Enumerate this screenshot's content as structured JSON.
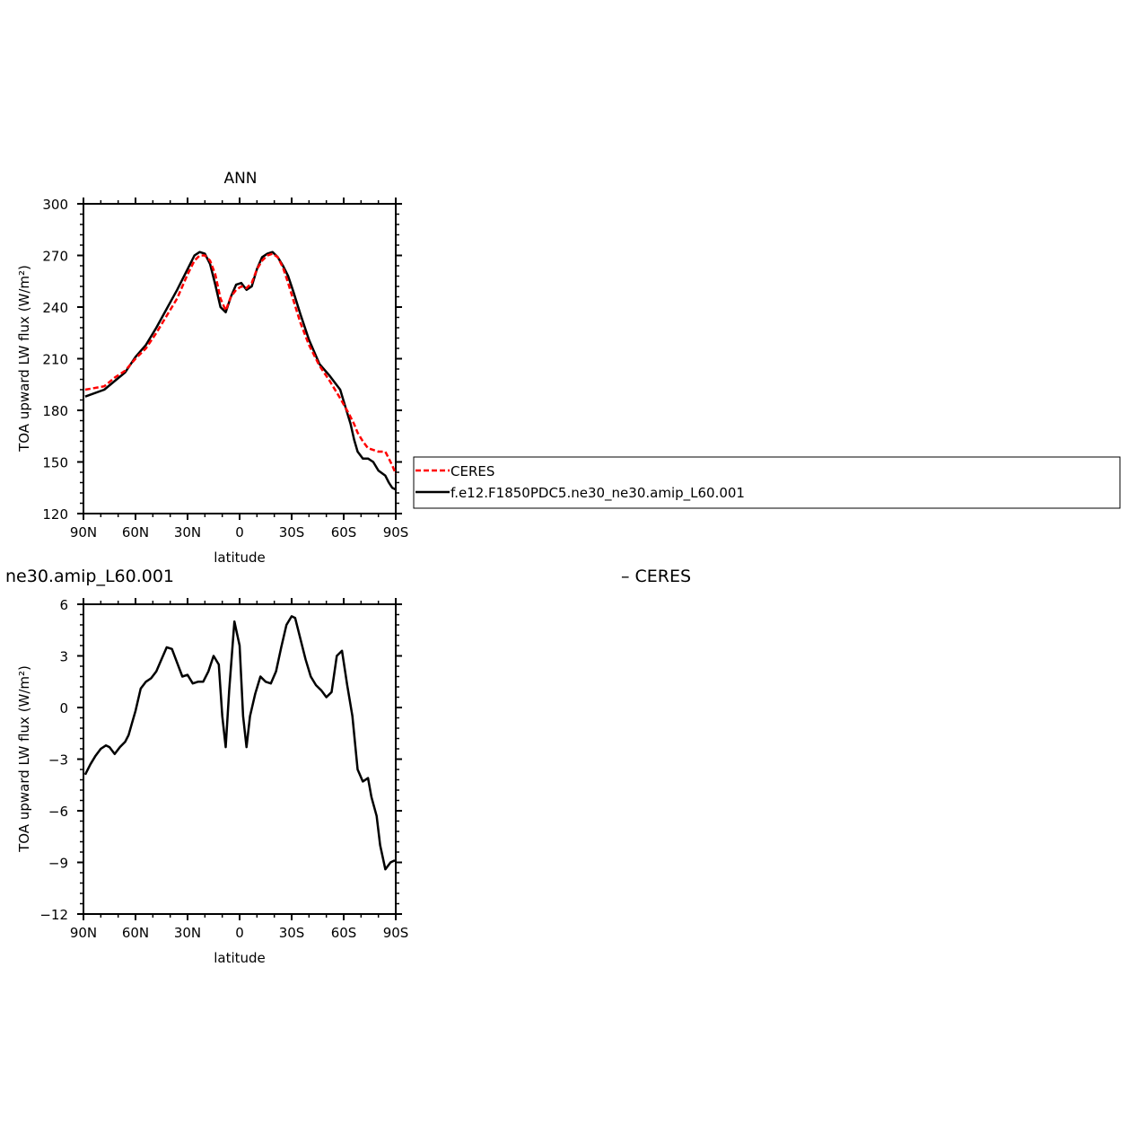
{
  "chart_data": [
    {
      "type": "line",
      "title": "ANN",
      "xlabel": "latitude",
      "ylabel": "TOA upward LW flux (W/m²)",
      "xlim": [
        90,
        -90
      ],
      "ylim": [
        120,
        300
      ],
      "xticks": [
        90,
        60,
        30,
        0,
        -30,
        -60,
        -90
      ],
      "xtick_labels": [
        "90N",
        "60N",
        "30N",
        "0",
        "30S",
        "60S",
        "90S"
      ],
      "yticks": [
        120,
        150,
        180,
        210,
        240,
        270,
        300
      ],
      "ytick_labels": [
        "120",
        "150",
        "180",
        "210",
        "240",
        "270",
        "300"
      ],
      "legend": "right, outside plot area, boxed",
      "series": [
        {
          "name": "CERES",
          "color": "#ff0000",
          "style": "dashed",
          "x": [
            89,
            78,
            72,
            66,
            60,
            54,
            48,
            42,
            36,
            30,
            26,
            23,
            20,
            17,
            14,
            11,
            8,
            5,
            2,
            -1,
            -4,
            -7,
            -10,
            -13,
            -16,
            -19,
            -22,
            -25,
            -28,
            -31,
            -35,
            -40,
            -46,
            -52,
            -58,
            -63,
            -66,
            -68,
            -71,
            -74,
            -77,
            -80,
            -84,
            -86,
            -88,
            -90
          ],
          "y": [
            192,
            194,
            199,
            203,
            210,
            216,
            225,
            235,
            245,
            259,
            267,
            270,
            270,
            267,
            259,
            245,
            238,
            246,
            250,
            252,
            251,
            254,
            262,
            267,
            270,
            271,
            269,
            263,
            254,
            244,
            231,
            218,
            206,
            197,
            187,
            178,
            172,
            167,
            162,
            158,
            157,
            156,
            156,
            152,
            148,
            143
          ]
        },
        {
          "name": "f.e12.F1850PDC5.ne30_ne30.amip_L60.001",
          "color": "#000000",
          "style": "solid",
          "x": [
            89,
            78,
            72,
            66,
            60,
            54,
            48,
            42,
            36,
            30,
            26,
            23,
            20,
            17,
            14,
            11,
            8,
            5,
            2,
            -1,
            -4,
            -7,
            -10,
            -13,
            -16,
            -19,
            -22,
            -25,
            -28,
            -31,
            -35,
            -40,
            -46,
            -52,
            -58,
            -61,
            -64,
            -66,
            -68,
            -71,
            -74,
            -77,
            -80,
            -84,
            -86,
            -88,
            -90
          ],
          "y": [
            188,
            192,
            197,
            202,
            211,
            218,
            228,
            239,
            250,
            262,
            270,
            272,
            271,
            265,
            253,
            240,
            237,
            246,
            253,
            254,
            250,
            252,
            262,
            269,
            271,
            272,
            269,
            264,
            258,
            249,
            236,
            221,
            207,
            200,
            192,
            182,
            172,
            163,
            156,
            152,
            152,
            150,
            145,
            142,
            138,
            135,
            134
          ]
        }
      ]
    },
    {
      "type": "line",
      "title": "ne30.amip_L60.001",
      "title_right": "– CERES",
      "xlabel": "latitude",
      "ylabel": "TOA upward LW flux (W/m²)",
      "xlim": [
        90,
        -90
      ],
      "ylim": [
        -12,
        6
      ],
      "xticks": [
        90,
        60,
        30,
        0,
        -30,
        -60,
        -90
      ],
      "xtick_labels": [
        "90N",
        "60N",
        "30N",
        "0",
        "30S",
        "60S",
        "90S"
      ],
      "yticks": [
        -12,
        -9,
        -6,
        -3,
        0,
        3,
        6
      ],
      "ytick_labels": [
        "−12",
        "−9",
        "−6",
        "−3",
        "0",
        "3",
        "6"
      ],
      "series": [
        {
          "color": "#000000",
          "style": "solid",
          "x": [
            89,
            86,
            83,
            80,
            77,
            75,
            72,
            69,
            66,
            64,
            62,
            60,
            57,
            54,
            51,
            48,
            45,
            42,
            39,
            36,
            33,
            30,
            27,
            24,
            21,
            18,
            15,
            12,
            10,
            8,
            6,
            3,
            0,
            -2,
            -4,
            -6,
            -9,
            -12,
            -15,
            -18,
            -21,
            -24,
            -27,
            -30,
            -32,
            -35,
            -38,
            -41,
            -44,
            -47,
            -50,
            -53,
            -56,
            -59,
            -62,
            -65,
            -68,
            -71,
            -74,
            -76,
            -79,
            -81,
            -84,
            -87,
            -89,
            -90
          ],
          "y": [
            -3.9,
            -3.3,
            -2.8,
            -2.4,
            -2.2,
            -2.3,
            -2.7,
            -2.3,
            -2.0,
            -1.6,
            -0.9,
            -0.2,
            1.1,
            1.5,
            1.7,
            2.1,
            2.8,
            3.5,
            3.4,
            2.6,
            1.8,
            1.9,
            1.4,
            1.5,
            1.5,
            2.1,
            3.0,
            2.5,
            -0.5,
            -2.3,
            1.0,
            5.0,
            3.6,
            -0.5,
            -2.3,
            -0.5,
            0.8,
            1.8,
            1.5,
            1.4,
            2.1,
            3.5,
            4.8,
            5.3,
            5.2,
            4.0,
            2.8,
            1.8,
            1.3,
            1.0,
            0.6,
            0.9,
            3.0,
            3.3,
            1.3,
            -0.5,
            -3.6,
            -4.3,
            -4.1,
            -5.2,
            -6.3,
            -8.0,
            -9.4,
            -9.0,
            -8.9,
            -8.9
          ]
        }
      ]
    }
  ]
}
